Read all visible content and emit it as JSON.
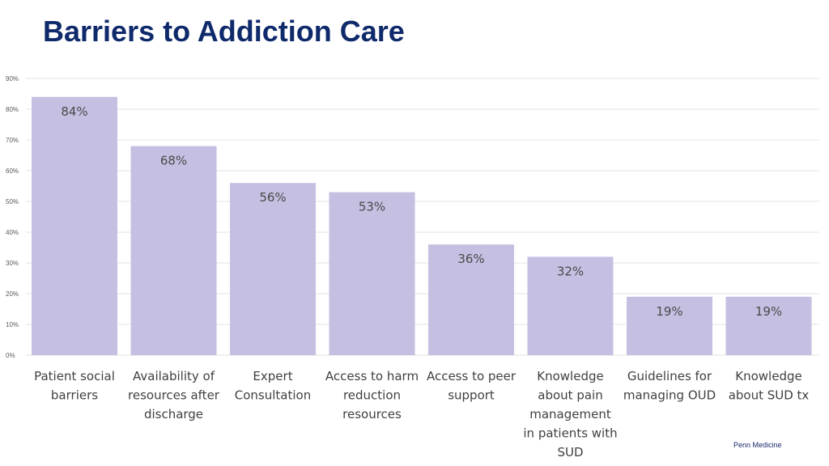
{
  "page": {
    "title": "Barriers to Addiction Care",
    "footer": "Penn Medicine"
  },
  "colors": {
    "title": "#0f2a6b",
    "bar": "#c5bfe2",
    "grid": "#e3e3e3",
    "tick_label": "#595959",
    "category_label": "#404040",
    "data_label": "#4a4a4a"
  },
  "chart_data": {
    "type": "bar",
    "title": "",
    "xlabel": "",
    "ylabel": "",
    "ylim": [
      0,
      90
    ],
    "yticks": [
      0,
      10,
      20,
      30,
      40,
      50,
      60,
      70,
      80,
      90
    ],
    "ytick_labels": [
      "0%",
      "10%",
      "20%",
      "30%",
      "40%",
      "50%",
      "60%",
      "70%",
      "80%",
      "90%"
    ],
    "grid": true,
    "legend": "none",
    "categories": [
      [
        "Patient social",
        "barriers"
      ],
      [
        "Availability of",
        "resources after",
        "discharge"
      ],
      [
        "Expert",
        "Consultation"
      ],
      [
        "Access to harm",
        "reduction",
        "resources"
      ],
      [
        "Access to peer",
        "support"
      ],
      [
        "Knowledge",
        "about pain",
        "management",
        "in patients with",
        "SUD"
      ],
      [
        "Guidelines for",
        "managing OUD"
      ],
      [
        "Knowledge",
        "about SUD tx"
      ]
    ],
    "values": [
      84,
      68,
      56,
      53,
      36,
      32,
      19,
      19
    ],
    "data_labels": [
      "84%",
      "68%",
      "56%",
      "53%",
      "36%",
      "32%",
      "19%",
      "19%"
    ]
  }
}
